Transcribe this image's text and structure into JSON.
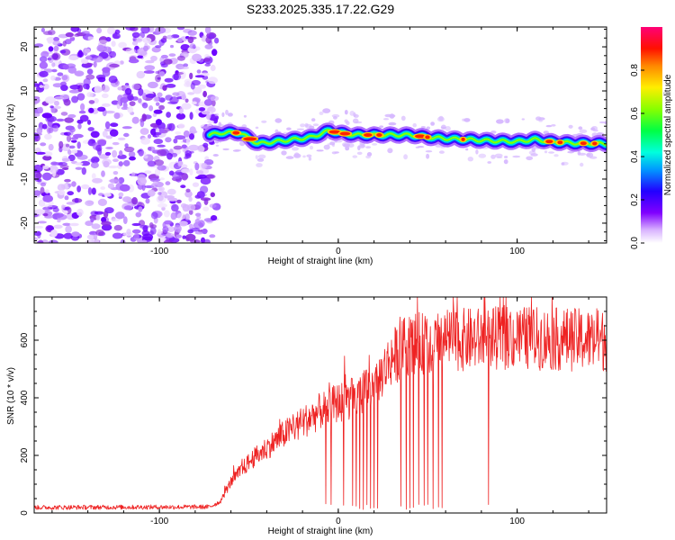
{
  "title": "S233.2025.335.17.22.G29",
  "chart_data": [
    {
      "type": "heatmap",
      "xlabel": "Height of straight line (km)",
      "ylabel": "Frequency (Hz)",
      "xlim": [
        -170,
        150
      ],
      "ylim": [
        -24.5,
        24.5
      ],
      "xticks": [
        -100,
        0,
        100
      ],
      "xtick_labels": [
        "-100",
        "0",
        "100"
      ],
      "yticks": [
        -20,
        -10,
        0,
        10,
        20
      ],
      "ytick_labels": [
        "-20",
        "-10",
        "0",
        "10",
        "20"
      ],
      "noise_region_x": [
        -170,
        -70
      ],
      "signal_track": {
        "x": [
          -72,
          -65,
          -55,
          -45,
          -35,
          -25,
          -15,
          -5,
          0,
          10,
          20,
          30,
          40,
          50,
          60,
          70,
          80,
          90,
          100,
          110,
          120,
          130,
          140,
          150
        ],
        "freq": [
          0,
          0.5,
          0.5,
          -2,
          -1.5,
          -1,
          -0.5,
          1,
          0.5,
          0,
          0,
          0,
          0,
          -0.5,
          -0.8,
          -1,
          -1.2,
          -1.4,
          -1.5,
          -1.0,
          -1.6,
          -1.8,
          -1.9,
          -2.0
        ]
      },
      "colorbar": {
        "label": "Normalized spectral amplitude",
        "range": [
          0,
          1
        ],
        "ticks": [
          0,
          0.2,
          0.4,
          0.6,
          0.8
        ],
        "tick_labels": [
          "0.0",
          "0.2",
          "0.4",
          "0.6",
          "0.8"
        ],
        "colormap": [
          "#ffffff",
          "#cc99ff",
          "#6600ff",
          "#0000ff",
          "#00ccff",
          "#00ff66",
          "#66ff00",
          "#ffff00",
          "#ff9900",
          "#ff0000",
          "#ff0066"
        ]
      }
    },
    {
      "type": "line",
      "xlabel": "Height of straight line (km)",
      "ylabel": "SNR (10 * v/v)",
      "xlim": [
        -170,
        150
      ],
      "ylim": [
        0,
        750
      ],
      "xticks": [
        -100,
        0,
        100
      ],
      "xtick_labels": [
        "-100",
        "0",
        "100"
      ],
      "yticks": [
        0,
        200,
        400,
        600
      ],
      "ytick_labels": [
        "0",
        "200",
        "400",
        "600"
      ],
      "line_color": "#ee2222",
      "series": [
        {
          "name": "SNR",
          "envelope_x": [
            -170,
            -72,
            -66,
            -60,
            -50,
            -40,
            -30,
            -20,
            -10,
            0,
            10,
            20,
            30,
            40,
            50,
            60,
            80,
            100,
            120,
            150
          ],
          "envelope_y": [
            20,
            22,
            40,
            110,
            180,
            230,
            280,
            320,
            360,
            390,
            410,
            450,
            550,
            600,
            600,
            610,
            615,
            620,
            615,
            610
          ],
          "dropouts_x": [
            -7,
            -4,
            3,
            8,
            10,
            12,
            14,
            16,
            18,
            20,
            22,
            35,
            38,
            40,
            42,
            45,
            48,
            50,
            53,
            56,
            58,
            84
          ]
        }
      ]
    }
  ]
}
